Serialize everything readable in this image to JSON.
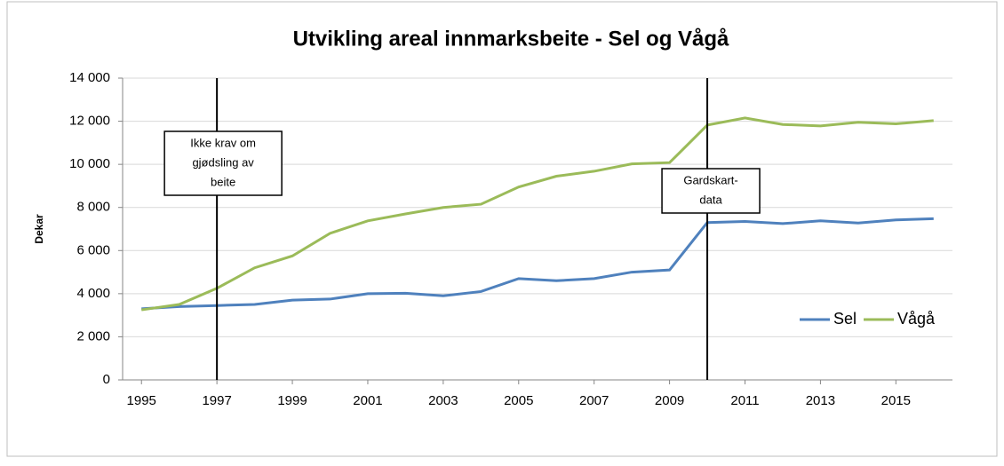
{
  "chart_data": {
    "type": "line",
    "title": "Utvikling areal innmarksbeite - Sel og Vågå",
    "y_label": "Dekar",
    "x": [
      1995,
      1996,
      1997,
      1998,
      1999,
      2000,
      2001,
      2002,
      2003,
      2004,
      2005,
      2006,
      2007,
      2008,
      2009,
      2010,
      2011,
      2012,
      2013,
      2014,
      2015,
      2016
    ],
    "series": [
      {
        "name": "Sel",
        "color": "#4f81bd",
        "values": [
          3300,
          3400,
          3450,
          3500,
          3700,
          3750,
          4000,
          4020,
          3900,
          4100,
          4700,
          4600,
          4700,
          5000,
          5100,
          7300,
          7350,
          7250,
          7380,
          7280,
          7420,
          7480
        ]
      },
      {
        "name": "Vågå",
        "color": "#9bbb59",
        "values": [
          3250,
          3500,
          4250,
          5200,
          5750,
          6800,
          7380,
          7700,
          8000,
          8150,
          8950,
          9450,
          9680,
          10020,
          10080,
          11820,
          12150,
          11850,
          11780,
          11950,
          11880,
          12030
        ]
      }
    ],
    "xlim": [
      1994.5,
      2016.5
    ],
    "xticks": [
      1995,
      1997,
      1999,
      2001,
      2003,
      2005,
      2007,
      2009,
      2011,
      2013,
      2015
    ],
    "ylim": [
      0,
      14000
    ],
    "yticks": [
      0,
      {
        "value": 2000,
        "label": "2 000"
      },
      {
        "value": 4000,
        "label": "4 000"
      },
      {
        "value": 6000,
        "label": "6 000"
      },
      {
        "value": 8000,
        "label": "8 000"
      },
      {
        "value": 10000,
        "label": "10 000"
      },
      {
        "value": 12000,
        "label": "12 000"
      },
      {
        "value": 14000,
        "label": "14 000"
      }
    ],
    "grid": true,
    "legend": "lower right",
    "annotations": [
      {
        "x": 1997,
        "lines": [
          "Ikke krav om",
          "gjødsling av",
          "beite"
        ]
      },
      {
        "x": 2010,
        "lines": [
          "Gardskart-",
          "data"
        ]
      }
    ]
  }
}
